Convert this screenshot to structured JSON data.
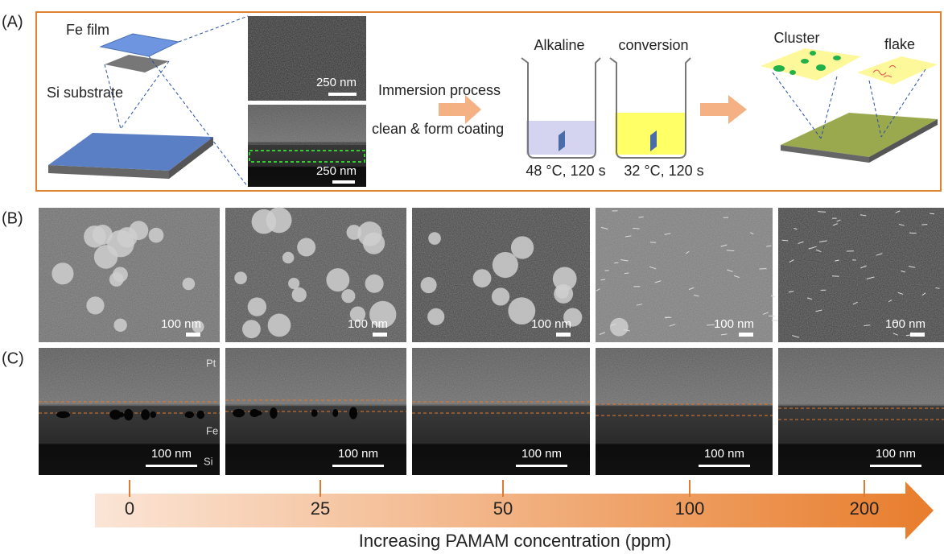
{
  "panel_a": {
    "label": "(A)",
    "fe_film": "Fe film",
    "si_substrate": "Si substrate",
    "scale_top": "250 nm",
    "scale_bottom": "250 nm",
    "process_line1": "Immersion process",
    "process_line2": "clean & form coating",
    "beaker1_title": "Alkaline",
    "beaker2_title": "conversion",
    "beaker1_condition": "48 °C, 120 s",
    "beaker2_condition": "32 °C, 120 s",
    "cluster": "Cluster",
    "flake": "flake"
  },
  "panel_b": {
    "label": "(B)",
    "scale_bars": [
      "100 nm",
      "100 nm",
      "100 nm",
      "100 nm",
      "100 nm"
    ]
  },
  "panel_c": {
    "label": "(C)",
    "layer_pt": "Pt",
    "layer_fe": "Fe",
    "layer_si": "Si",
    "scale_bars": [
      "100 nm",
      "100 nm",
      "100 nm",
      "100 nm",
      "100 nm"
    ]
  },
  "concentration_axis": {
    "ticks": [
      0,
      25,
      50,
      100,
      200
    ],
    "title": "Increasing PAMAM concentration (ppm)"
  }
}
